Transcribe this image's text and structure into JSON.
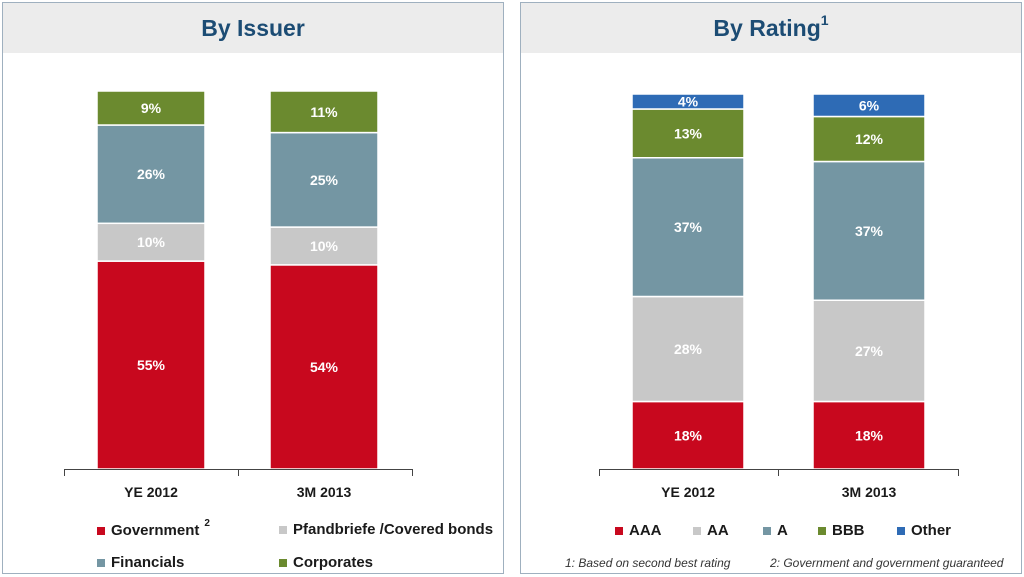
{
  "colors": {
    "red": "#c8081e",
    "lightgray": "#c8c8c8",
    "steel": "#7496a3",
    "green": "#6b8a2f",
    "blue": "#2e6bb5",
    "header_text": "#1c4c74",
    "header_bg": "#ececec"
  },
  "left_panel": {
    "title": "By Issuer",
    "legend": [
      {
        "label": "Government",
        "sup": "2",
        "color": "#c8081e",
        "icon": "square-icon"
      },
      {
        "label": "Pfandbriefe /Covered bonds",
        "color": "#c8c8c8",
        "icon": "square-icon"
      },
      {
        "label": "Financials",
        "color": "#7496a3",
        "icon": "square-icon"
      },
      {
        "label": "Corporates",
        "color": "#6b8a2f",
        "icon": "square-icon"
      }
    ]
  },
  "right_panel": {
    "title": "By Rating",
    "title_sup": "1",
    "legend": [
      {
        "label": "AAA",
        "color": "#c8081e",
        "icon": "square-icon"
      },
      {
        "label": "AA",
        "color": "#c8c8c8",
        "icon": "square-icon"
      },
      {
        "label": "A",
        "color": "#7496a3",
        "icon": "square-icon"
      },
      {
        "label": "BBB",
        "color": "#6b8a2f",
        "icon": "square-icon"
      },
      {
        "label": "Other",
        "color": "#2e6bb5",
        "icon": "square-icon"
      }
    ],
    "footnotes": [
      "1: Based on second best rating",
      "2: Government and government guaranteed"
    ]
  },
  "chart_data": [
    {
      "type": "bar",
      "stacked": true,
      "percent": true,
      "title": "By Issuer",
      "categories": [
        "YE 2012",
        "3M 2013"
      ],
      "series": [
        {
          "name": "Government",
          "values": [
            55,
            54
          ],
          "color": "#c8081e",
          "label_color": "#ffffff"
        },
        {
          "name": "Pfandbriefe /Covered bonds",
          "values": [
            10,
            10
          ],
          "color": "#c8c8c8",
          "label_color": "#ffffff"
        },
        {
          "name": "Financials",
          "values": [
            26,
            25
          ],
          "color": "#7496a3",
          "label_color": "#ffffff"
        },
        {
          "name": "Corporates",
          "values": [
            9,
            11
          ],
          "color": "#6b8a2f",
          "label_color": "#ffffff"
        }
      ],
      "ylim": [
        0,
        100
      ],
      "grid": false,
      "legend_position": "bottom"
    },
    {
      "type": "bar",
      "stacked": true,
      "percent": true,
      "title": "By Rating",
      "categories": [
        "YE 2012",
        "3M 2013"
      ],
      "series": [
        {
          "name": "AAA",
          "values": [
            18,
            18
          ],
          "color": "#c8081e",
          "label_color": "#ffffff"
        },
        {
          "name": "AA",
          "values": [
            28,
            27
          ],
          "color": "#c8c8c8",
          "label_color": "#ffffff"
        },
        {
          "name": "A",
          "values": [
            37,
            37
          ],
          "color": "#7496a3",
          "label_color": "#ffffff"
        },
        {
          "name": "BBB",
          "values": [
            13,
            12
          ],
          "color": "#6b8a2f",
          "label_color": "#ffffff"
        },
        {
          "name": "Other",
          "values": [
            4,
            6
          ],
          "color": "#2e6bb5",
          "label_color": "#ffffff"
        }
      ],
      "ylim": [
        0,
        100
      ],
      "grid": false,
      "legend_position": "bottom"
    }
  ]
}
